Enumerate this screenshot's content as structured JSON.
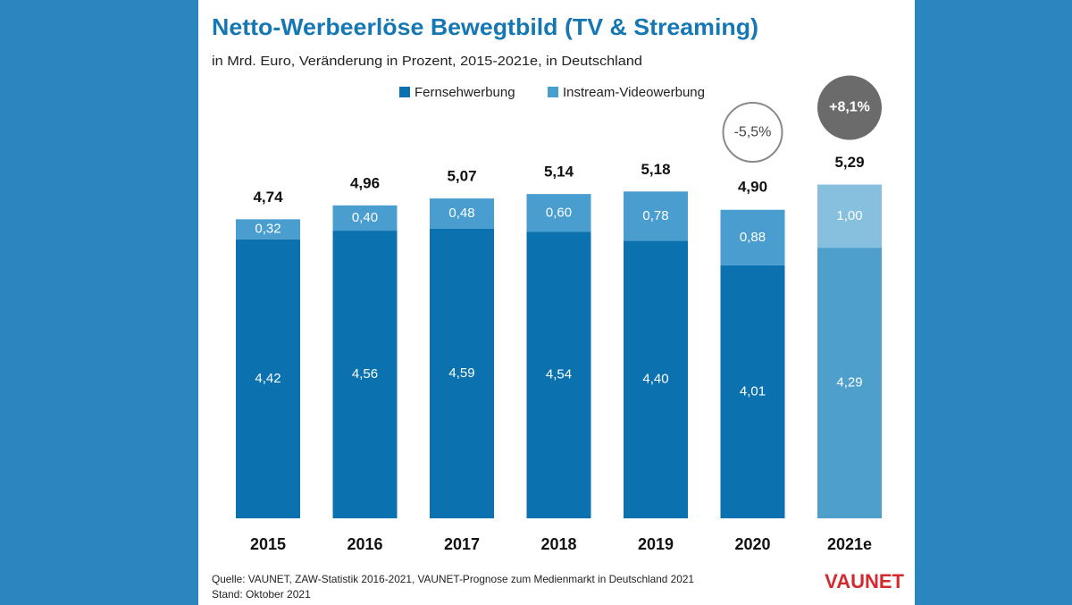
{
  "chart_data": {
    "type": "stacked-bar",
    "title": "Netto-Werbeerlöse Bewegtbild (TV & Streaming)",
    "subtitle": "in Mrd. Euro, Veränderung in Prozent, 2015-2021e, in Deutschland",
    "categories": [
      "2015",
      "2016",
      "2017",
      "2018",
      "2019",
      "2020",
      "2021e"
    ],
    "series": [
      {
        "name": "Fernsehwerbung",
        "color": "#0b72af",
        "colors": [
          "#0b72af",
          "#0b72af",
          "#0b72af",
          "#0b72af",
          "#0b72af",
          "#0b72af",
          "#4e9fcc"
        ],
        "values": [
          4.42,
          4.56,
          4.59,
          4.54,
          4.4,
          4.01,
          4.29
        ],
        "value_labels": [
          "4,42",
          "4,56",
          "4,59",
          "4,54",
          "4,40",
          "4,01",
          "4,29"
        ]
      },
      {
        "name": "Instream-Videowerbung",
        "color": "#4a9ecf",
        "colors": [
          "#4a9ecf",
          "#4a9ecf",
          "#4a9ecf",
          "#4a9ecf",
          "#4a9ecf",
          "#4a9ecf",
          "#87bfdf"
        ],
        "values": [
          0.32,
          0.4,
          0.48,
          0.6,
          0.78,
          0.88,
          1.0
        ],
        "value_labels": [
          "0,32",
          "0,40",
          "0,48",
          "0,60",
          "0,78",
          "0,88",
          "1,00"
        ]
      }
    ],
    "totals": [
      4.74,
      4.96,
      5.07,
      5.14,
      5.18,
      4.9,
      5.29
    ],
    "total_labels": [
      "4,74",
      "4,96",
      "5,07",
      "5,14",
      "5,18",
      "4,90",
      "5,29"
    ],
    "changes": [
      null,
      null,
      null,
      null,
      null,
      -5.5,
      8.1
    ],
    "change_labels": [
      null,
      null,
      null,
      null,
      null,
      "-5,5%",
      "+8,1%"
    ],
    "source": "Quelle: VAUNET, ZAW-Statistik 2016-2021, VAUNET-Prognose zum Medienmarkt in Deutschland 2021",
    "date_note": "Stand: Oktober 2021",
    "logo": "VAUNET"
  }
}
